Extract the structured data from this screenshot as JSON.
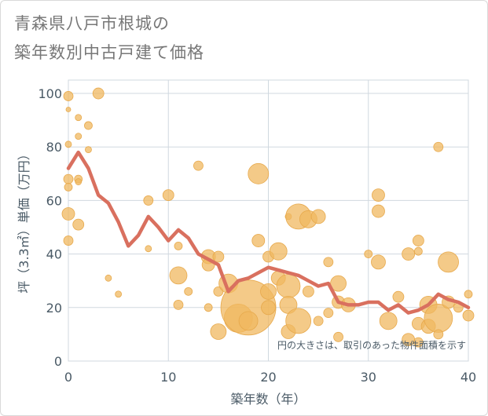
{
  "title_lines": [
    "青森県八戸市根城の",
    "築年数別中古戸建て価格"
  ],
  "chart_data": {
    "type": "scatter",
    "title": "青森県八戸市根城の築年数別中古戸建て価格",
    "xlabel": "築年数（年）",
    "ylabel": "坪（3.3㎡）単価（万円）",
    "xlim": [
      0,
      40
    ],
    "ylim": [
      0,
      105
    ],
    "xticks": [
      0,
      10,
      20,
      30,
      40
    ],
    "yticks": [
      0,
      20,
      40,
      60,
      80,
      100
    ],
    "grid": true,
    "note": "円の大きさは、取引のあった物件面積を示す",
    "colors": {
      "bubble": "#f0b860",
      "bubble_stroke": "#e7a94c",
      "line": "#d9705f",
      "grid": "#d0d8df",
      "text": "#4a5a66"
    },
    "points": [
      {
        "x": 0,
        "y": 99,
        "s": 6
      },
      {
        "x": 0,
        "y": 94,
        "s": 3
      },
      {
        "x": 0,
        "y": 81,
        "s": 4
      },
      {
        "x": 0,
        "y": 68,
        "s": 6
      },
      {
        "x": 0,
        "y": 65,
        "s": 5
      },
      {
        "x": 0,
        "y": 55,
        "s": 8
      },
      {
        "x": 0,
        "y": 45,
        "s": 6
      },
      {
        "x": 1,
        "y": 91,
        "s": 4
      },
      {
        "x": 1,
        "y": 84,
        "s": 4
      },
      {
        "x": 1,
        "y": 68,
        "s": 5
      },
      {
        "x": 1,
        "y": 67,
        "s": 4
      },
      {
        "x": 1,
        "y": 51,
        "s": 7
      },
      {
        "x": 2,
        "y": 88,
        "s": 5
      },
      {
        "x": 2,
        "y": 79,
        "s": 4
      },
      {
        "x": 3,
        "y": 100,
        "s": 7
      },
      {
        "x": 4,
        "y": 31,
        "s": 4
      },
      {
        "x": 5,
        "y": 25,
        "s": 4
      },
      {
        "x": 8,
        "y": 60,
        "s": 6
      },
      {
        "x": 8,
        "y": 42,
        "s": 4
      },
      {
        "x": 10,
        "y": 62,
        "s": 7
      },
      {
        "x": 11,
        "y": 43,
        "s": 5
      },
      {
        "x": 11,
        "y": 32,
        "s": 11
      },
      {
        "x": 11,
        "y": 21,
        "s": 6
      },
      {
        "x": 12,
        "y": 26,
        "s": 5
      },
      {
        "x": 13,
        "y": 73,
        "s": 6
      },
      {
        "x": 14,
        "y": 39,
        "s": 9
      },
      {
        "x": 14,
        "y": 36,
        "s": 8
      },
      {
        "x": 14,
        "y": 20,
        "s": 5
      },
      {
        "x": 15,
        "y": 39,
        "s": 7
      },
      {
        "x": 15,
        "y": 26,
        "s": 6
      },
      {
        "x": 15,
        "y": 11,
        "s": 10
      },
      {
        "x": 16,
        "y": 29,
        "s": 12
      },
      {
        "x": 17,
        "y": 16,
        "s": 18
      },
      {
        "x": 18,
        "y": 20,
        "s": 35
      },
      {
        "x": 18,
        "y": 15,
        "s": 12
      },
      {
        "x": 19,
        "y": 70,
        "s": 13
      },
      {
        "x": 19,
        "y": 45,
        "s": 8
      },
      {
        "x": 20,
        "y": 39,
        "s": 7
      },
      {
        "x": 20,
        "y": 26,
        "s": 10
      },
      {
        "x": 20,
        "y": 20,
        "s": 9
      },
      {
        "x": 21,
        "y": 41,
        "s": 11
      },
      {
        "x": 21,
        "y": 31,
        "s": 9
      },
      {
        "x": 22,
        "y": 54,
        "s": 4
      },
      {
        "x": 22,
        "y": 28,
        "s": 15
      },
      {
        "x": 22,
        "y": 21,
        "s": 11
      },
      {
        "x": 22,
        "y": 11,
        "s": 9
      },
      {
        "x": 23,
        "y": 54,
        "s": 16
      },
      {
        "x": 23,
        "y": 15,
        "s": 16
      },
      {
        "x": 24,
        "y": 53,
        "s": 11
      },
      {
        "x": 24,
        "y": 26,
        "s": 7
      },
      {
        "x": 25,
        "y": 54,
        "s": 9
      },
      {
        "x": 25,
        "y": 15,
        "s": 6
      },
      {
        "x": 26,
        "y": 37,
        "s": 6
      },
      {
        "x": 26,
        "y": 18,
        "s": 6
      },
      {
        "x": 27,
        "y": 29,
        "s": 10
      },
      {
        "x": 27,
        "y": 22,
        "s": 8
      },
      {
        "x": 27,
        "y": 9,
        "s": 6
      },
      {
        "x": 28,
        "y": 21,
        "s": 9
      },
      {
        "x": 30,
        "y": 40,
        "s": 5
      },
      {
        "x": 31,
        "y": 62,
        "s": 8
      },
      {
        "x": 31,
        "y": 56,
        "s": 8
      },
      {
        "x": 31,
        "y": 37,
        "s": 9
      },
      {
        "x": 32,
        "y": 15,
        "s": 11
      },
      {
        "x": 33,
        "y": 24,
        "s": 7
      },
      {
        "x": 34,
        "y": 40,
        "s": 8
      },
      {
        "x": 34,
        "y": 8,
        "s": 8
      },
      {
        "x": 35,
        "y": 45,
        "s": 7
      },
      {
        "x": 35,
        "y": 41,
        "s": 5
      },
      {
        "x": 35,
        "y": 14,
        "s": 8
      },
      {
        "x": 35,
        "y": 7,
        "s": 6
      },
      {
        "x": 36,
        "y": 21,
        "s": 11
      },
      {
        "x": 36,
        "y": 13,
        "s": 9
      },
      {
        "x": 37,
        "y": 80,
        "s": 6
      },
      {
        "x": 37,
        "y": 16,
        "s": 18
      },
      {
        "x": 37,
        "y": 10,
        "s": 6
      },
      {
        "x": 38,
        "y": 37,
        "s": 13
      },
      {
        "x": 38,
        "y": 22,
        "s": 8
      },
      {
        "x": 39,
        "y": 20,
        "s": 6
      },
      {
        "x": 40,
        "y": 25,
        "s": 5
      },
      {
        "x": 40,
        "y": 17,
        "s": 7
      }
    ],
    "trend": {
      "x": [
        0,
        1,
        2,
        3,
        4,
        5,
        6,
        7,
        8,
        9,
        10,
        11,
        12,
        13,
        14,
        15,
        16,
        17,
        18,
        19,
        20,
        21,
        22,
        23,
        24,
        25,
        26,
        27,
        28,
        29,
        30,
        31,
        32,
        33,
        34,
        35,
        36,
        37,
        38,
        39,
        40
      ],
      "y": [
        72,
        78,
        72,
        62,
        59,
        52,
        43,
        47,
        54,
        50,
        45,
        49,
        46,
        40,
        38,
        36,
        26,
        30,
        31,
        33,
        35,
        34,
        33,
        32,
        30,
        28,
        29,
        22,
        21,
        21,
        22,
        22,
        19,
        21,
        18,
        19,
        21,
        25,
        23,
        22,
        20
      ]
    }
  }
}
